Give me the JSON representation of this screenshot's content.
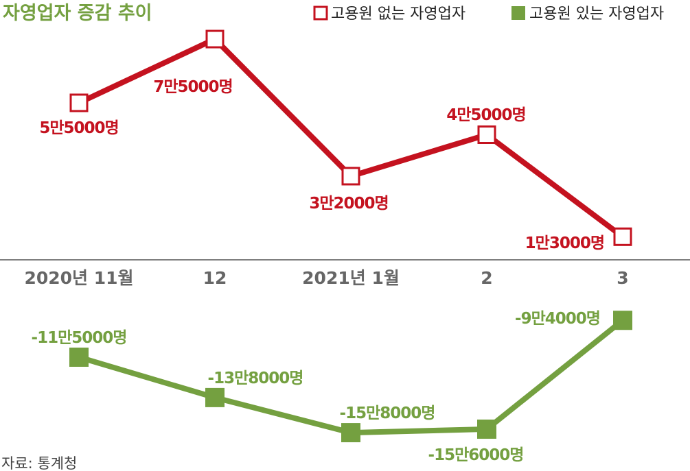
{
  "chart_data": {
    "type": "line",
    "title": "자영업자 증감 추이",
    "categories": [
      "2020년 11월",
      "12",
      "2021년 1월",
      "2",
      "3"
    ],
    "series": [
      {
        "name": "고용원 없는 자영업자",
        "values": [
          55000,
          75000,
          32000,
          45000,
          13000
        ],
        "labels": [
          "5만5000명",
          "7만5000명",
          "3만2000명",
          "4만5000명",
          "1만3000명"
        ],
        "color": "#c4121f",
        "marker": "hollow-square"
      },
      {
        "name": "고용원 있는 자영업자",
        "values": [
          -115000,
          -138000,
          -158000,
          -156000,
          -94000
        ],
        "labels": [
          "-11만5000명",
          "-13만8000명",
          "-15만8000명",
          "-15만6000명",
          "-9만4000명"
        ],
        "color": "#74a040",
        "marker": "filled-square"
      }
    ],
    "xlabel": "",
    "ylabel": "",
    "legend": "top-right",
    "grid": false,
    "source": "자료: 통계청"
  }
}
